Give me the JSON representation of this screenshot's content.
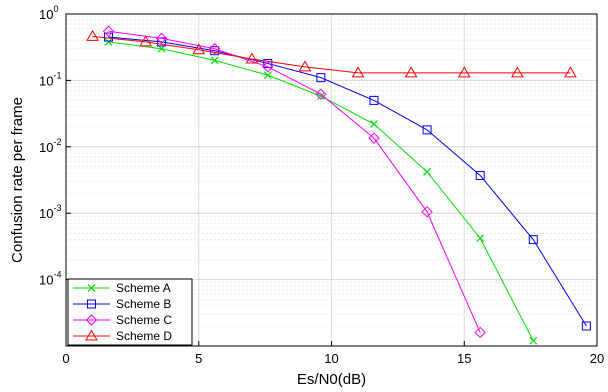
{
  "chart_data": {
    "type": "line",
    "xlabel": "Es/N0(dB)",
    "ylabel": "Confusion rate per frame",
    "xlim": [
      0,
      20
    ],
    "ylim": [
      1e-05,
      1
    ],
    "yscale": "log",
    "grid": true,
    "legend_position": "bottom-left",
    "x_ticks": [
      "0",
      "5",
      "10",
      "15",
      "20"
    ],
    "y_ticks": [
      {
        "base": "10",
        "exp": "0"
      },
      {
        "base": "10",
        "exp": "-1"
      },
      {
        "base": "10",
        "exp": "-2"
      },
      {
        "base": "10",
        "exp": "-3"
      },
      {
        "base": "10",
        "exp": "-4"
      }
    ],
    "series": [
      {
        "name": "Scheme A",
        "color": "#00e000",
        "marker": "x",
        "x": [
          1.6,
          3.6,
          5.6,
          7.6,
          9.6,
          11.6,
          13.6,
          15.6,
          17.6
        ],
        "y": [
          0.38,
          0.3,
          0.2,
          0.12,
          0.058,
          0.022,
          0.0042,
          0.00042,
          1.2e-05
        ]
      },
      {
        "name": "Scheme B",
        "color": "#0000ff",
        "marker": "square",
        "x": [
          1.6,
          3.6,
          5.6,
          7.6,
          9.6,
          11.6,
          13.6,
          15.6,
          17.6,
          19.6
        ],
        "y": [
          0.45,
          0.38,
          0.28,
          0.18,
          0.11,
          0.05,
          0.018,
          0.0037,
          0.0004,
          2e-05
        ]
      },
      {
        "name": "Scheme C",
        "color": "#ff00ff",
        "marker": "diamond",
        "x": [
          1.6,
          3.6,
          5.6,
          7.6,
          9.6,
          11.6,
          13.6,
          15.6
        ],
        "y": [
          0.55,
          0.43,
          0.3,
          0.16,
          0.062,
          0.0135,
          0.00105,
          1.6e-05
        ]
      },
      {
        "name": "Scheme D",
        "color": "#ff0000",
        "marker": "triangle",
        "x": [
          1,
          3,
          5,
          7,
          9,
          11,
          13,
          15,
          17,
          19
        ],
        "y": [
          0.46,
          0.38,
          0.29,
          0.21,
          0.16,
          0.13,
          0.13,
          0.13,
          0.13,
          0.13
        ]
      }
    ]
  }
}
